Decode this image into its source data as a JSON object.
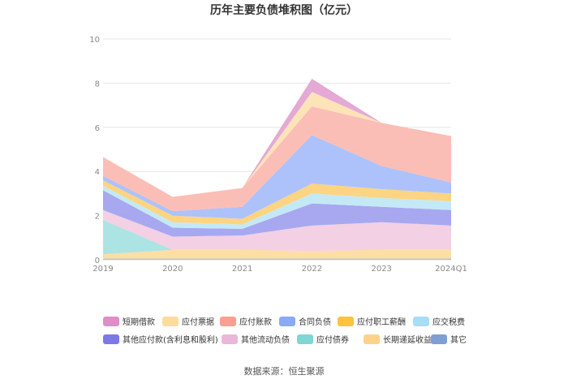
{
  "chart_data": {
    "type": "area",
    "stacked": true,
    "title": "历年主要负债堆积图（亿元）",
    "source": "数据来源：恒生聚源",
    "categories": [
      "2019",
      "2020",
      "2021",
      "2022",
      "2023",
      "2024Q1"
    ],
    "ylim": [
      0,
      10
    ],
    "yticks": [
      "0",
      "2",
      "4",
      "6",
      "8",
      "10"
    ],
    "grid": true,
    "legend_position": "bottom",
    "series": [
      {
        "name": "其它",
        "color": "#8eaad8",
        "values": [
          0.05,
          0.05,
          0.05,
          0.05,
          0.05,
          0.05
        ]
      },
      {
        "name": "长期递延收益",
        "color": "#fddca0",
        "values": [
          0.2,
          0.4,
          0.4,
          0.35,
          0.4,
          0.4
        ]
      },
      {
        "name": "应付债券",
        "color": "#a6e3e0",
        "values": [
          1.55,
          0.0,
          0.0,
          0.0,
          0.0,
          0.0
        ]
      },
      {
        "name": "其他流动负债",
        "color": "#f2cde2",
        "values": [
          0.45,
          0.6,
          0.65,
          1.15,
          1.25,
          1.1
        ]
      },
      {
        "name": "其他应付款(含利息和股利)",
        "color": "#a2a3ef",
        "values": [
          0.9,
          0.4,
          0.3,
          1.0,
          0.7,
          0.7
        ]
      },
      {
        "name": "应交税费",
        "color": "#c1e8f6",
        "values": [
          0.2,
          0.25,
          0.2,
          0.45,
          0.4,
          0.4
        ]
      },
      {
        "name": "应付职工薪酬",
        "color": "#fdd27b",
        "values": [
          0.25,
          0.3,
          0.25,
          0.45,
          0.4,
          0.35
        ]
      },
      {
        "name": "合同负债",
        "color": "#a9bffb",
        "values": [
          0.2,
          0.2,
          0.55,
          2.2,
          1.05,
          0.5
        ]
      },
      {
        "name": "应付账款",
        "color": "#fbbbb2",
        "values": [
          0.85,
          0.65,
          0.85,
          1.3,
          1.95,
          2.1
        ]
      },
      {
        "name": "应付票据",
        "color": "#fde2b4",
        "values": [
          0.0,
          0.0,
          0.0,
          0.65,
          0.0,
          0.0
        ]
      },
      {
        "name": "短期借款",
        "color": "#e3a4d3",
        "values": [
          0.0,
          0.0,
          0.0,
          0.6,
          0.0,
          0.0
        ]
      }
    ],
    "legend": [
      {
        "name": "短期借款",
        "color": "#df8ec8"
      },
      {
        "name": "应付票据",
        "color": "#fddc9c"
      },
      {
        "name": "应付账款",
        "color": "#fa9f92"
      },
      {
        "name": "合同负债",
        "color": "#8ca9f8"
      },
      {
        "name": "应付职工薪酬",
        "color": "#fdc33d"
      },
      {
        "name": "应交税费",
        "color": "#a8def3"
      },
      {
        "name": "其他应付款(含利息和股利)",
        "color": "#7b79e9"
      },
      {
        "name": "其他流动负债",
        "color": "#ebb7d6"
      },
      {
        "name": "应付债券",
        "color": "#7fd6d2"
      },
      {
        "name": "长期递延收益",
        "color": "#fdd28a"
      },
      {
        "name": "其它",
        "color": "#7f9fd4"
      }
    ]
  }
}
